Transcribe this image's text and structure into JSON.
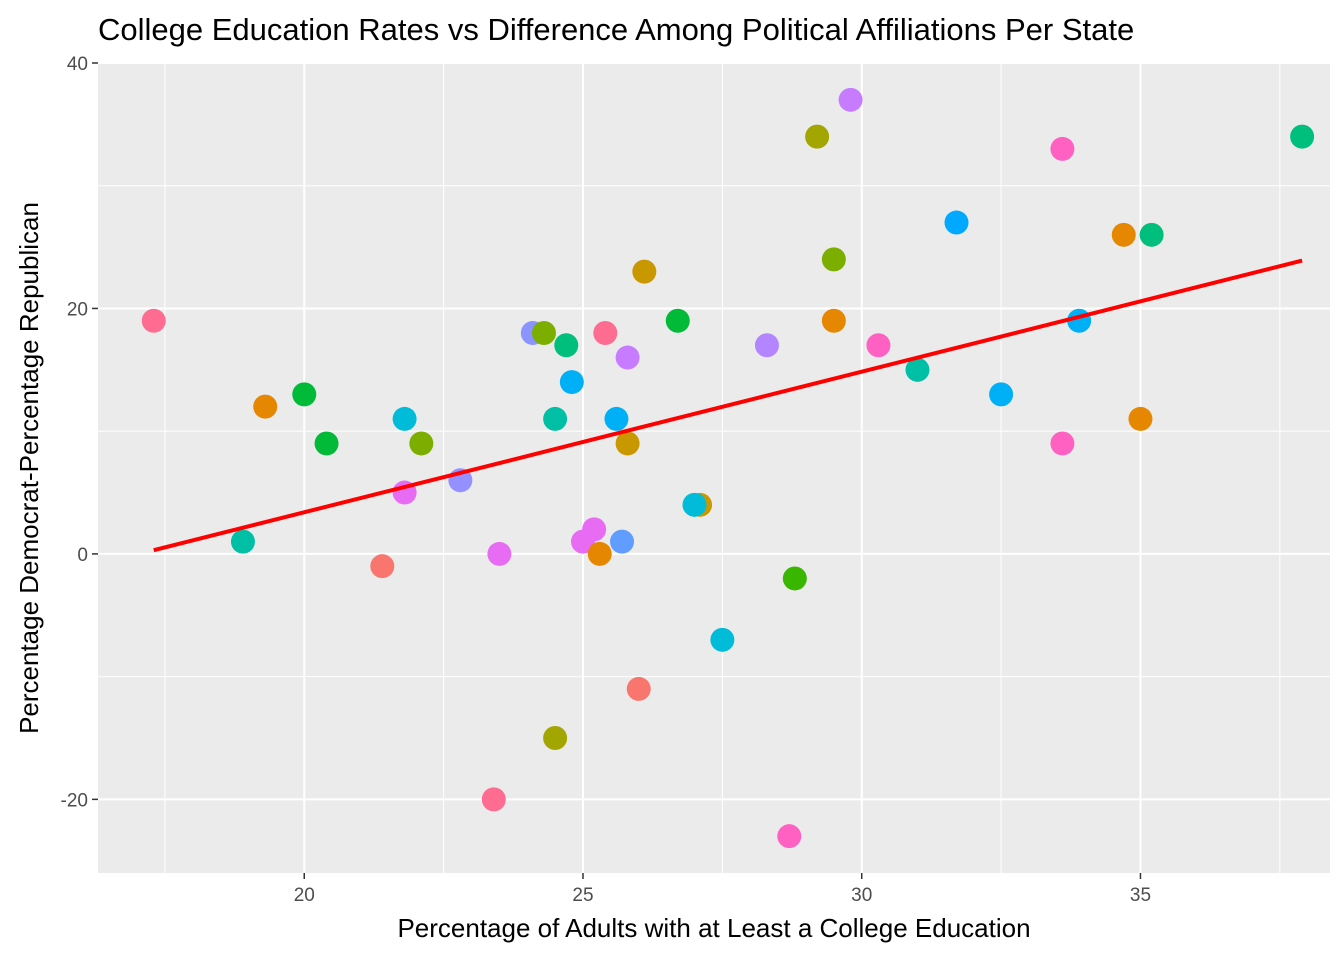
{
  "chart_data": {
    "type": "scatter",
    "title": "College Education Rates vs Difference Among Political Affiliations Per State",
    "xlabel": "Percentage of Adults with at Least a College Education",
    "ylabel": "Percentage Democrat-Percentage Republican",
    "xlim": [
      16.3,
      38.4
    ],
    "ylim": [
      -26,
      40
    ],
    "x_ticks": [
      20,
      25,
      30,
      35
    ],
    "y_ticks": [
      -20,
      0,
      20,
      40
    ],
    "x_tick_labels": [
      "20",
      "25",
      "30",
      "35"
    ],
    "y_tick_labels": [
      "-20",
      "0",
      "20",
      "40"
    ],
    "grid": true,
    "legend": "none",
    "points": [
      {
        "x": 17.3,
        "y": 19,
        "color": "#FF6C91"
      },
      {
        "x": 18.9,
        "y": 1,
        "color": "#00BFA5"
      },
      {
        "x": 19.3,
        "y": 12,
        "color": "#E58700"
      },
      {
        "x": 20.0,
        "y": 13,
        "color": "#00BA38"
      },
      {
        "x": 20.4,
        "y": 9,
        "color": "#00BA38"
      },
      {
        "x": 21.4,
        "y": -1,
        "color": "#F8766D"
      },
      {
        "x": 21.8,
        "y": 11,
        "color": "#00BCD8"
      },
      {
        "x": 21.8,
        "y": 5,
        "color": "#E76BF3"
      },
      {
        "x": 22.1,
        "y": 9,
        "color": "#7CAE00"
      },
      {
        "x": 22.8,
        "y": 6,
        "color": "#9590FF"
      },
      {
        "x": 23.4,
        "y": -20,
        "color": "#FF6C91"
      },
      {
        "x": 23.5,
        "y": 0,
        "color": "#E76BF3"
      },
      {
        "x": 24.1,
        "y": 18,
        "color": "#8B93FF"
      },
      {
        "x": 24.3,
        "y": 18,
        "color": "#7CAE00"
      },
      {
        "x": 24.5,
        "y": 11,
        "color": "#00BFA5"
      },
      {
        "x": 24.5,
        "y": -15,
        "color": "#A3A500"
      },
      {
        "x": 24.7,
        "y": 17,
        "color": "#00BF7D"
      },
      {
        "x": 24.8,
        "y": 14,
        "color": "#00B0F6"
      },
      {
        "x": 25.0,
        "y": 1,
        "color": "#E76BF3"
      },
      {
        "x": 25.2,
        "y": 2,
        "color": "#E76BF3"
      },
      {
        "x": 25.3,
        "y": 0,
        "color": "#E58700"
      },
      {
        "x": 25.4,
        "y": 18,
        "color": "#FF6C91"
      },
      {
        "x": 25.6,
        "y": 11,
        "color": "#00B0F6"
      },
      {
        "x": 25.7,
        "y": 1,
        "color": "#619CFF"
      },
      {
        "x": 25.8,
        "y": 9,
        "color": "#C99800"
      },
      {
        "x": 25.8,
        "y": 16,
        "color": "#C77CFF"
      },
      {
        "x": 26.0,
        "y": -11,
        "color": "#F8766D"
      },
      {
        "x": 26.1,
        "y": 23,
        "color": "#C99800"
      },
      {
        "x": 26.7,
        "y": 19,
        "color": "#00BA38"
      },
      {
        "x": 27.1,
        "y": 4,
        "color": "#C99800"
      },
      {
        "x": 27.0,
        "y": 4,
        "color": "#00BCD8"
      },
      {
        "x": 27.5,
        "y": -7,
        "color": "#00BCD8"
      },
      {
        "x": 28.3,
        "y": 17,
        "color": "#B385FF"
      },
      {
        "x": 28.7,
        "y": -23,
        "color": "#FF61C3"
      },
      {
        "x": 28.8,
        "y": -2,
        "color": "#39B600"
      },
      {
        "x": 29.2,
        "y": 34,
        "color": "#A3A500"
      },
      {
        "x": 29.5,
        "y": 24,
        "color": "#7CAE00"
      },
      {
        "x": 29.5,
        "y": 19,
        "color": "#E58700"
      },
      {
        "x": 29.8,
        "y": 37,
        "color": "#C77CFF"
      },
      {
        "x": 30.3,
        "y": 17,
        "color": "#FF61C3"
      },
      {
        "x": 31.0,
        "y": 15,
        "color": "#00BFA5"
      },
      {
        "x": 31.7,
        "y": 27,
        "color": "#00A9FF"
      },
      {
        "x": 32.5,
        "y": 13,
        "color": "#00B0F6"
      },
      {
        "x": 33.6,
        "y": 33,
        "color": "#FF61C3"
      },
      {
        "x": 33.6,
        "y": 9,
        "color": "#FF61C3"
      },
      {
        "x": 33.9,
        "y": 19,
        "color": "#00B0F6"
      },
      {
        "x": 34.7,
        "y": 26,
        "color": "#E58700"
      },
      {
        "x": 35.0,
        "y": 11,
        "color": "#E58700"
      },
      {
        "x": 35.2,
        "y": 26,
        "color": "#00BF7D"
      },
      {
        "x": 37.9,
        "y": 34,
        "color": "#00BF7D"
      }
    ],
    "trend_line": {
      "x": [
        17.3,
        37.9
      ],
      "y": [
        0.3,
        23.9
      ],
      "color": "#FF0000"
    },
    "panel_background": "#EBEBEB",
    "grid_color": "#FFFFFF"
  }
}
